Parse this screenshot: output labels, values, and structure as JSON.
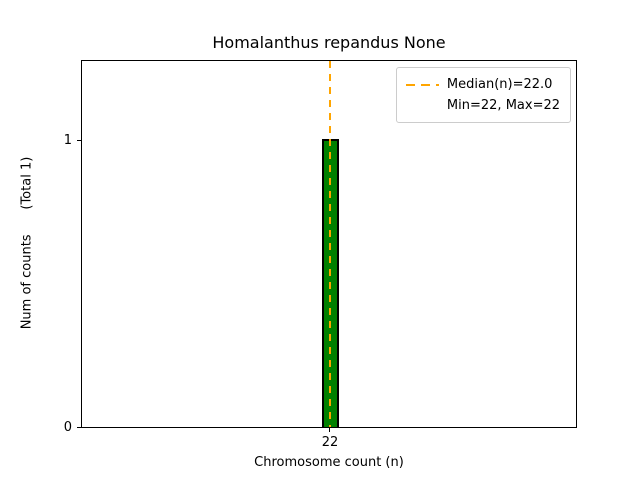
{
  "chart_data": {
    "type": "bar",
    "title": "Homalanthus repandus None",
    "xlabel": "Chromosome count (n)",
    "ylabel": "Num of counts      (Total 1)",
    "categories": [
      22
    ],
    "values": [
      1
    ],
    "total_counts": 1,
    "xtick_labels": [
      "22"
    ],
    "ytick_labels": [
      "1",
      "0"
    ],
    "ylim": [
      0,
      1.28
    ],
    "grid": false,
    "bar_color": "#008000",
    "bar_edge_color": "#000000",
    "median_line": {
      "value": 22.0,
      "color": "#ffa500",
      "style": "dashed",
      "orientation": "vertical"
    },
    "min": 22,
    "max": 22,
    "legend_position": "upper right",
    "legend_labels": [
      "Median(n)=22.0",
      "Min=22, Max=22"
    ]
  }
}
